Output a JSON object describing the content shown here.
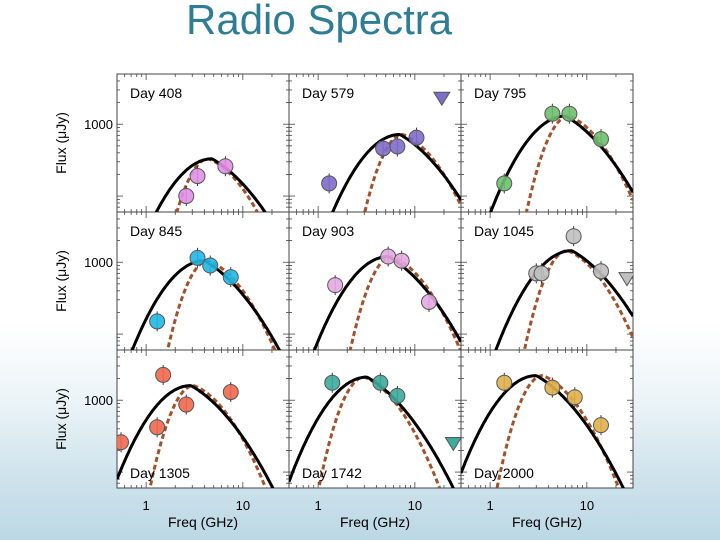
{
  "slide": {
    "title": "Radio Spectra"
  },
  "chart_data": {
    "type": "scatter",
    "layout": "3x3 grid of panels",
    "x_scale": "log",
    "y_scale": "log",
    "xlim": [
      0.5,
      30
    ],
    "ylim": [
      60,
      5000
    ],
    "x_ticks": [
      1,
      10
    ],
    "x_tick_labels": [
      "1",
      "10"
    ],
    "y_ticks": [
      1000
    ],
    "y_tick_labels": [
      "1000"
    ],
    "xlabel": "Freq (GHz)",
    "ylabel": "Flux (μJy)",
    "panel_label_position": [
      "top-left",
      "top-left",
      "top-left",
      "top-left",
      "top-left",
      "top-left",
      "bottom-left",
      "bottom-left",
      "bottom-left"
    ],
    "line_styles": {
      "solid_curve": "#000000",
      "dashed_curve": "#a0522d"
    },
    "panels": [
      {
        "label": "Day 408",
        "color": "#e08fe6",
        "points": [
          [
            2.6,
            100
          ],
          [
            3.4,
            190
          ],
          [
            6.6,
            260
          ]
        ],
        "solid": {
          "peak_freq": 4.8,
          "peak_flux": 330
        },
        "dashed": {
          "peak_freq": 4.4,
          "peak_flux": 330
        }
      },
      {
        "label": "Day 579",
        "color": "#7e6cc9",
        "points": [
          [
            1.3,
            150
          ],
          [
            4.7,
            460
          ],
          [
            6.6,
            490
          ],
          [
            10.4,
            650
          ]
        ],
        "upper_limits": [
          [
            19,
            2300
          ]
        ],
        "solid": {
          "peak_freq": 7.0,
          "peak_flux": 720
        },
        "dashed": {
          "peak_freq": 7.5,
          "peak_flux": 720
        }
      },
      {
        "label": "Day 795",
        "color": "#6fbf6f",
        "points": [
          [
            1.4,
            150
          ],
          [
            4.4,
            1400
          ],
          [
            6.6,
            1400
          ],
          [
            14,
            620
          ]
        ],
        "solid": {
          "peak_freq": 6.0,
          "peak_flux": 1300
        },
        "dashed": {
          "peak_freq": 6.5,
          "peak_flux": 1300
        }
      },
      {
        "label": "Day 845",
        "color": "#1fb8e6",
        "points": [
          [
            1.3,
            150
          ],
          [
            3.4,
            1150
          ],
          [
            4.6,
            900
          ],
          [
            7.5,
            620
          ]
        ],
        "solid": {
          "peak_freq": 4.0,
          "peak_flux": 1050
        },
        "dashed": {
          "peak_freq": 4.4,
          "peak_flux": 1050
        }
      },
      {
        "label": "Day 903",
        "color": "#e6a8e2",
        "points": [
          [
            1.5,
            480
          ],
          [
            5.3,
            1200
          ],
          [
            7.3,
            1050
          ],
          [
            14,
            280
          ]
        ],
        "solid": {
          "peak_freq": 5.3,
          "peak_flux": 1200
        },
        "dashed": {
          "peak_freq": 5.8,
          "peak_flux": 1200
        }
      },
      {
        "label": "Day 1045",
        "color": "#bfbfbf",
        "points": [
          [
            3.0,
            700
          ],
          [
            3.4,
            700
          ],
          [
            7.3,
            2300
          ],
          [
            14,
            750
          ]
        ],
        "upper_limits": [
          [
            26,
            590
          ]
        ],
        "solid": {
          "peak_freq": 7.0,
          "peak_flux": 1450
        },
        "dashed": {
          "peak_freq": 6.3,
          "peak_flux": 1450
        }
      },
      {
        "label": "Day 1305",
        "color": "#f0684e",
        "points": [
          [
            0.55,
            260
          ],
          [
            1.3,
            420
          ],
          [
            1.5,
            2250
          ],
          [
            2.6,
            870
          ],
          [
            7.5,
            1300
          ]
        ],
        "solid": {
          "peak_freq": 2.9,
          "peak_flux": 1600
        },
        "dashed": {
          "peak_freq": 3.1,
          "peak_flux": 1600
        }
      },
      {
        "label": "Day 1742",
        "color": "#3daa9a",
        "points": [
          [
            1.4,
            1750
          ],
          [
            4.4,
            1750
          ],
          [
            6.6,
            1150
          ]
        ],
        "upper_limits": [
          [
            25,
            250
          ]
        ],
        "solid": {
          "peak_freq": 3.2,
          "peak_flux": 2100
        },
        "dashed": {
          "peak_freq": 3.0,
          "peak_flux": 2100
        }
      },
      {
        "label": "Day 2000",
        "color": "#e0b04a",
        "points": [
          [
            1.4,
            1750
          ],
          [
            4.4,
            1500
          ],
          [
            7.5,
            1100
          ],
          [
            14,
            450
          ]
        ],
        "solid": {
          "peak_freq": 3.0,
          "peak_flux": 2200
        },
        "dashed": {
          "peak_freq": 3.5,
          "peak_flux": 2200
        }
      }
    ]
  }
}
